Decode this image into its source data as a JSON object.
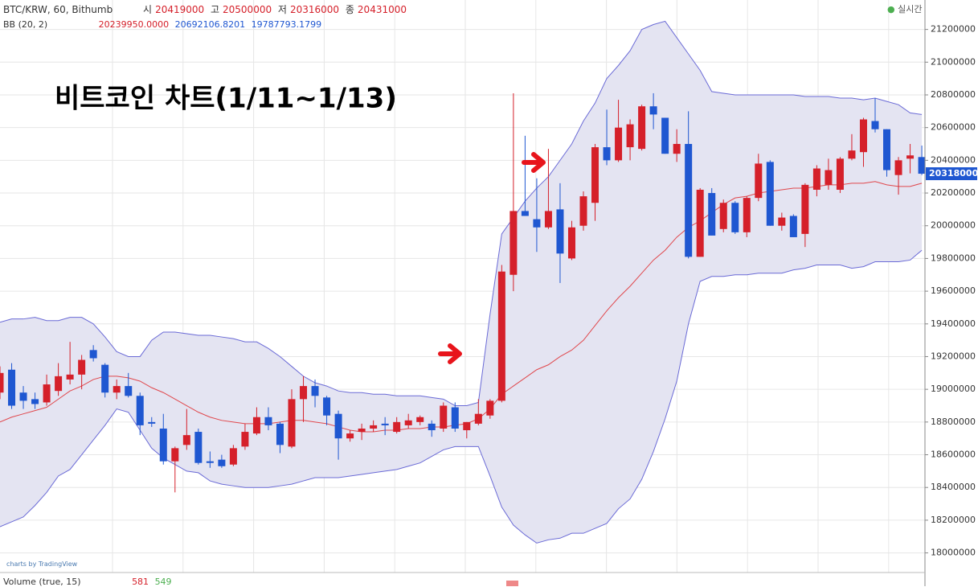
{
  "header": {
    "symbol": "BTC/KRW, 60, Bithumb",
    "open_label": "시",
    "open": "20419000",
    "high_label": "고",
    "high": "20500000",
    "low_label": "저",
    "low": "20316000",
    "close_label": "종",
    "close": "20431000",
    "indicator": "BB (20, 2)",
    "bb_mid": "20239950.0000",
    "bb_upper": "20692106.8201",
    "bb_lower": "19787793.1799",
    "status": "실시간",
    "credit": "charts by TradingView",
    "volume": "Volume (true, 15)",
    "volume_a": "581",
    "volume_b": "549"
  },
  "chart_data": {
    "type": "candlestick",
    "title": "비트코인 차트(1/11~1/13)",
    "categories": [
      null,
      null,
      null,
      null,
      null,
      null,
      null,
      null,
      null,
      null,
      null,
      null,
      null,
      null,
      null,
      null,
      null,
      null,
      null,
      null,
      null,
      null,
      null,
      null,
      null,
      null,
      null,
      null,
      null,
      null,
      null,
      null,
      null,
      null,
      null,
      null,
      null,
      null,
      null,
      null,
      null,
      null,
      null,
      null,
      null,
      null,
      null,
      null,
      null,
      null,
      null,
      null,
      null,
      null,
      null,
      null,
      null,
      null,
      null,
      null,
      null,
      null,
      null,
      null,
      null,
      null,
      null,
      null,
      null,
      null,
      null,
      null,
      null,
      null,
      null,
      null,
      null,
      null,
      null,
      null
    ],
    "open": [
      18980000,
      19120000,
      18980000,
      18940000,
      18920000,
      18990000,
      19060000,
      19090000,
      19240000,
      19150000,
      18980000,
      19020000,
      18960000,
      18800000,
      18760000,
      18560000,
      18660000,
      18740000,
      18560000,
      18570000,
      18540000,
      18650000,
      18730000,
      18830000,
      18790000,
      18650000,
      18940000,
      19020000,
      18950000,
      18850000,
      18700000,
      18740000,
      18760000,
      18790000,
      18740000,
      18780000,
      18800000,
      18790000,
      18760000,
      18890000,
      18750000,
      18790000,
      18840000,
      18930000,
      19700000,
      20090000,
      20040000,
      19990000,
      20100000,
      19800000,
      20000000,
      20140000,
      20480000,
      20400000,
      20480000,
      20470000,
      20730000,
      20660000,
      20440000,
      20500000,
      19810000,
      20200000,
      19980000,
      20140000,
      19960000,
      20170000,
      20390000,
      20000000,
      20060000,
      19950000,
      20220000,
      20250000,
      20220000,
      20410000,
      20450000,
      20640000,
      20590000,
      20310000,
      20410000,
      20420000
    ],
    "high": [
      19140000,
      19160000,
      19020000,
      18980000,
      19090000,
      19160000,
      19290000,
      19210000,
      19270000,
      19160000,
      19060000,
      19100000,
      18980000,
      18830000,
      18850000,
      18650000,
      18880000,
      18760000,
      18620000,
      18600000,
      18660000,
      18790000,
      18890000,
      18890000,
      18800000,
      19000000,
      19080000,
      19060000,
      18960000,
      18870000,
      18750000,
      18790000,
      18810000,
      18830000,
      18830000,
      18850000,
      18840000,
      18810000,
      18920000,
      18920000,
      18800000,
      18940000,
      18940000,
      19760000,
      20810000,
      20550000,
      20290000,
      20470000,
      20260000,
      20030000,
      20210000,
      20500000,
      20710000,
      20770000,
      20650000,
      20740000,
      20810000,
      20660000,
      20590000,
      20700000,
      20230000,
      20230000,
      20160000,
      20150000,
      20180000,
      20440000,
      20400000,
      20080000,
      20070000,
      20260000,
      20370000,
      20410000,
      20420000,
      20560000,
      20660000,
      20780000,
      20590000,
      20420000,
      20500000,
      20490000
    ],
    "low": [
      18940000,
      18880000,
      18880000,
      18880000,
      18900000,
      18960000,
      19030000,
      19000000,
      19170000,
      18950000,
      18940000,
      18950000,
      18720000,
      18770000,
      18540000,
      18370000,
      18630000,
      18540000,
      18520000,
      18520000,
      18530000,
      18630000,
      18720000,
      18750000,
      18610000,
      18640000,
      18800000,
      18890000,
      18780000,
      18570000,
      18680000,
      18690000,
      18740000,
      18720000,
      18730000,
      18760000,
      18780000,
      18710000,
      18740000,
      18740000,
      18700000,
      18780000,
      18820000,
      18920000,
      19600000,
      20060000,
      19840000,
      19980000,
      19650000,
      19790000,
      19970000,
      20030000,
      20370000,
      20390000,
      20400000,
      20460000,
      20590000,
      20440000,
      20390000,
      19800000,
      19810000,
      19940000,
      19960000,
      19950000,
      19930000,
      20150000,
      20000000,
      19970000,
      19930000,
      19870000,
      20180000,
      20220000,
      20200000,
      20400000,
      20360000,
      20570000,
      20300000,
      20190000,
      20320000,
      20310000
    ],
    "close": [
      19100000,
      18900000,
      18930000,
      18910000,
      19030000,
      19080000,
      19090000,
      19180000,
      19190000,
      18980000,
      19020000,
      18960000,
      18780000,
      18790000,
      18560000,
      18640000,
      18720000,
      18550000,
      18550000,
      18530000,
      18640000,
      18740000,
      18830000,
      18780000,
      18660000,
      18940000,
      19020000,
      18960000,
      18840000,
      18700000,
      18730000,
      18760000,
      18780000,
      18780000,
      18800000,
      18810000,
      18830000,
      18750000,
      18900000,
      18760000,
      18800000,
      18850000,
      18930000,
      19720000,
      20090000,
      20060000,
      19990000,
      20090000,
      19830000,
      19990000,
      20180000,
      20480000,
      20400000,
      20600000,
      20620000,
      20730000,
      20680000,
      20440000,
      20500000,
      19810000,
      20220000,
      19940000,
      20140000,
      19960000,
      20170000,
      20380000,
      20000000,
      20050000,
      19930000,
      20250000,
      20350000,
      20340000,
      20410000,
      20460000,
      20650000,
      20590000,
      20340000,
      20400000,
      20430000,
      20318000
    ],
    "up_color": "#d5202a",
    "down_color": "#1f57d1",
    "series": [
      {
        "name": "upper",
        "color": "#6a6ad6",
        "values": [
          19410000,
          19430000,
          19430000,
          19440000,
          19420000,
          19420000,
          19440000,
          19440000,
          19400000,
          19320000,
          19230000,
          19200000,
          19200000,
          19300000,
          19350000,
          19350000,
          19340000,
          19330000,
          19330000,
          19320000,
          19310000,
          19290000,
          19290000,
          19250000,
          19200000,
          19140000,
          19080000,
          19040000,
          19020000,
          18990000,
          18980000,
          18980000,
          18970000,
          18970000,
          18960000,
          18960000,
          18960000,
          18950000,
          18940000,
          18900000,
          18900000,
          18920000,
          19460000,
          19950000,
          20050000,
          20150000,
          20230000,
          20300000,
          20400000,
          20500000,
          20640000,
          20750000,
          20900000,
          20980000,
          21070000,
          21200000,
          21230000,
          21250000,
          21150000,
          21050000,
          20950000,
          20820000,
          20810000,
          20800000,
          20800000,
          20800000,
          20800000,
          20800000,
          20800000,
          20790000,
          20790000,
          20790000,
          20780000,
          20780000,
          20770000,
          20780000,
          20760000,
          20740000,
          20690000,
          20680000
        ]
      },
      {
        "name": "basis",
        "color": "#e0474c",
        "values": [
          18800000,
          18830000,
          18850000,
          18870000,
          18890000,
          18940000,
          18990000,
          19020000,
          19060000,
          19080000,
          19080000,
          19070000,
          19050000,
          19010000,
          18980000,
          18940000,
          18900000,
          18860000,
          18830000,
          18810000,
          18800000,
          18790000,
          18790000,
          18790000,
          18800000,
          18810000,
          18810000,
          18800000,
          18790000,
          18770000,
          18750000,
          18740000,
          18740000,
          18750000,
          18750000,
          18760000,
          18760000,
          18770000,
          18770000,
          18780000,
          18790000,
          18820000,
          18880000,
          18970000,
          19020000,
          19070000,
          19120000,
          19150000,
          19200000,
          19240000,
          19300000,
          19390000,
          19480000,
          19560000,
          19630000,
          19710000,
          19790000,
          19850000,
          19930000,
          19990000,
          20030000,
          20080000,
          20130000,
          20170000,
          20180000,
          20200000,
          20210000,
          20220000,
          20230000,
          20230000,
          20240000,
          20250000,
          20250000,
          20260000,
          20260000,
          20270000,
          20250000,
          20240000,
          20240000,
          20260000
        ]
      },
      {
        "name": "lower",
        "color": "#6a6ad6",
        "values": [
          18160000,
          18190000,
          18220000,
          18290000,
          18370000,
          18470000,
          18510000,
          18600000,
          18690000,
          18780000,
          18880000,
          18860000,
          18750000,
          18640000,
          18580000,
          18540000,
          18500000,
          18490000,
          18440000,
          18420000,
          18410000,
          18400000,
          18400000,
          18400000,
          18410000,
          18420000,
          18440000,
          18460000,
          18460000,
          18460000,
          18470000,
          18480000,
          18490000,
          18500000,
          18510000,
          18530000,
          18550000,
          18590000,
          18630000,
          18650000,
          18650000,
          18650000,
          18470000,
          18280000,
          18170000,
          18110000,
          18060000,
          18080000,
          18090000,
          18120000,
          18120000,
          18150000,
          18180000,
          18270000,
          18330000,
          18450000,
          18620000,
          18820000,
          19050000,
          19400000,
          19660000,
          19690000,
          19690000,
          19700000,
          19700000,
          19710000,
          19710000,
          19710000,
          19730000,
          19740000,
          19760000,
          19760000,
          19760000,
          19740000,
          19750000,
          19780000,
          19780000,
          19780000,
          19790000,
          19850000
        ]
      }
    ],
    "band_fill": "#e4e4f2",
    "price_label": 20318000,
    "price_label_color": "#1f57d1",
    "ylim": [
      17880000,
      21380000
    ],
    "yticks": [
      18000000,
      18200000,
      18400000,
      18600000,
      18800000,
      19000000,
      19200000,
      19400000,
      19600000,
      19800000,
      20000000,
      20200000,
      20400000,
      20600000,
      20800000,
      21000000,
      21200000
    ],
    "grid": true
  }
}
